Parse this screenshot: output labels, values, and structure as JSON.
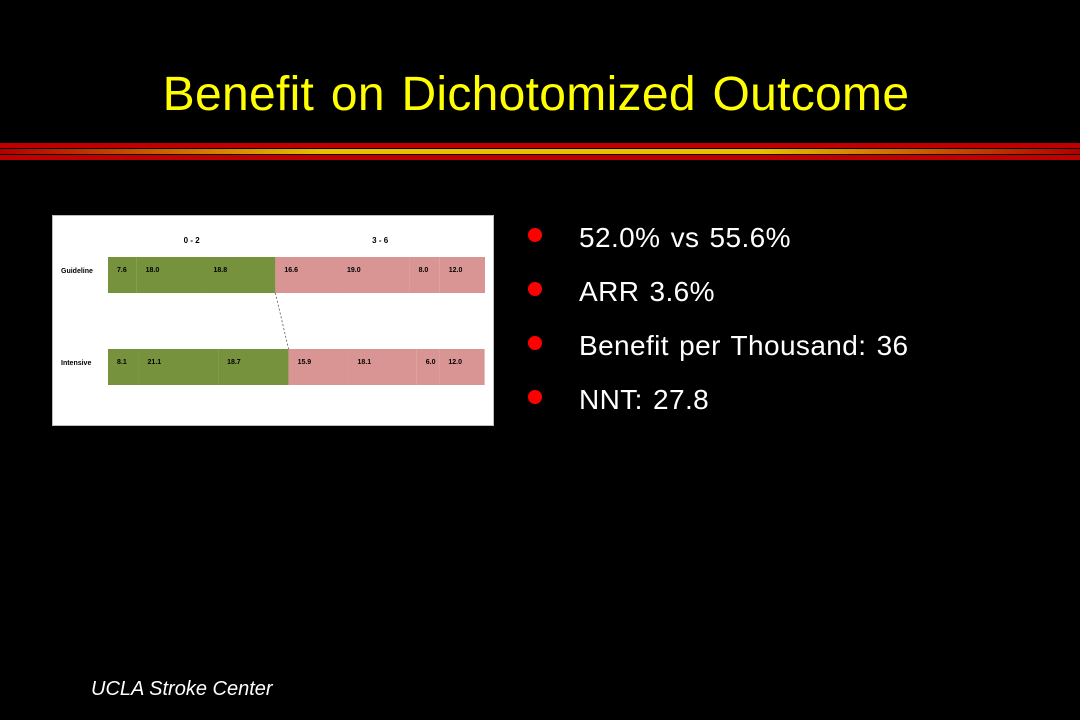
{
  "slide": {
    "title": "Benefit on Dichotomized Outcome",
    "footer": "UCLA Stroke Center",
    "rule_colors": [
      "#C00000",
      "#FFFF00",
      "#C00000"
    ]
  },
  "bullets": [
    "52.0% vs 55.6%",
    "ARR 3.6%",
    "Benefit per Thousand: 36",
    "NNT: 27.8"
  ],
  "colors": {
    "title": "#FFFF00",
    "bullet_dot": "#FF0000",
    "bar_good": "#76923C",
    "bar_poor": "#D99594"
  },
  "chart_data": {
    "type": "bar",
    "orientation": "horizontal",
    "stacked": true,
    "group_labels": [
      "0 - 2",
      "3 - 6"
    ],
    "categories": [
      "Guideline",
      "Intensive"
    ],
    "segments": [
      {
        "group": "0 - 2",
        "color": "#76923C",
        "values": [
          7.6,
          8.1
        ]
      },
      {
        "group": "0 - 2",
        "color": "#76923C",
        "values": [
          18.0,
          21.1
        ]
      },
      {
        "group": "0 - 2",
        "color": "#76923C",
        "values": [
          18.8,
          18.7
        ]
      },
      {
        "group": "3 - 6",
        "color": "#D99594",
        "values": [
          16.6,
          15.9
        ]
      },
      {
        "group": "3 - 6",
        "color": "#D99594",
        "values": [
          19.0,
          18.1
        ]
      },
      {
        "group": "3 - 6",
        "color": "#D99594",
        "values": [
          8.0,
          6.0
        ]
      },
      {
        "group": "3 - 6",
        "color": "#D99594",
        "values": [
          12.0,
          12.0
        ]
      }
    ],
    "x_range": [
      0,
      100
    ],
    "grid": false,
    "legend": "none",
    "dashed_connector": true
  }
}
